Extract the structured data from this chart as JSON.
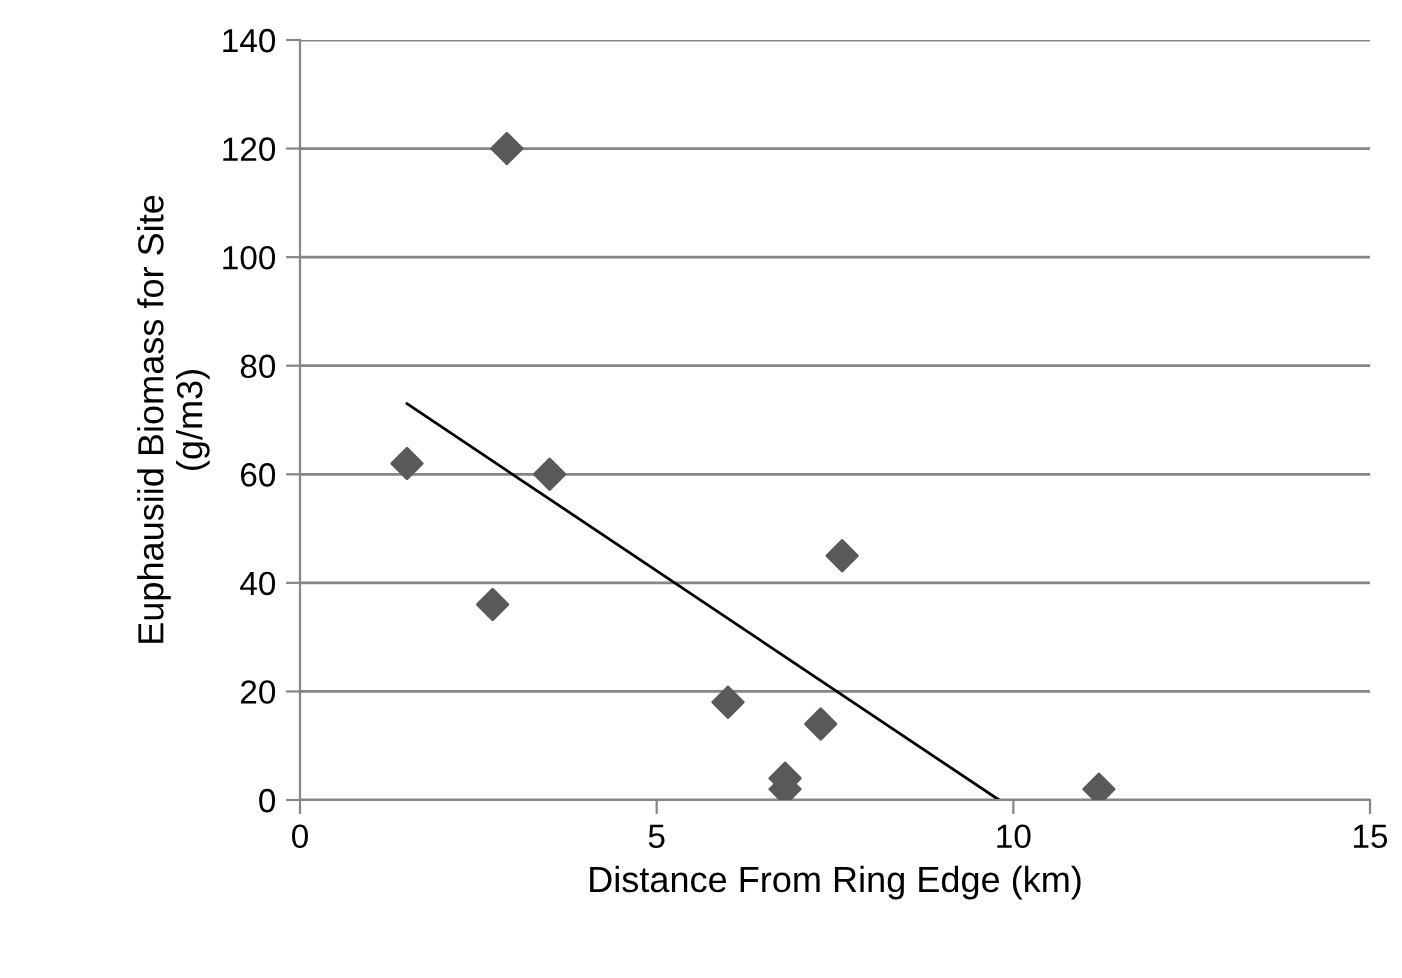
{
  "chart_data": {
    "type": "scatter",
    "xlabel": "Distance From Ring Edge (km)",
    "ylabel": "Euphausiid Biomass for Site\n(g/m3)",
    "xlim": [
      0,
      15
    ],
    "xticks": [
      0,
      5,
      10,
      15
    ],
    "ylim": [
      0,
      140
    ],
    "yticks": [
      0,
      20,
      40,
      60,
      80,
      100,
      120,
      140
    ],
    "grid": "y",
    "legend": false,
    "series": [
      {
        "color": "#595959",
        "marker": "diamond",
        "x": [
          1.5,
          2.9,
          2.7,
          3.5,
          6.0,
          6.8,
          6.8,
          7.3,
          7.6,
          11.2
        ],
        "values": [
          62,
          120,
          36,
          60,
          18,
          4,
          2,
          14,
          45,
          2
        ]
      },
      {
        "type": "line",
        "color": "#000000",
        "marker": "none",
        "line_style": "solid",
        "x": [
          1.5,
          9.8
        ],
        "values": [
          73,
          0
        ]
      }
    ]
  }
}
